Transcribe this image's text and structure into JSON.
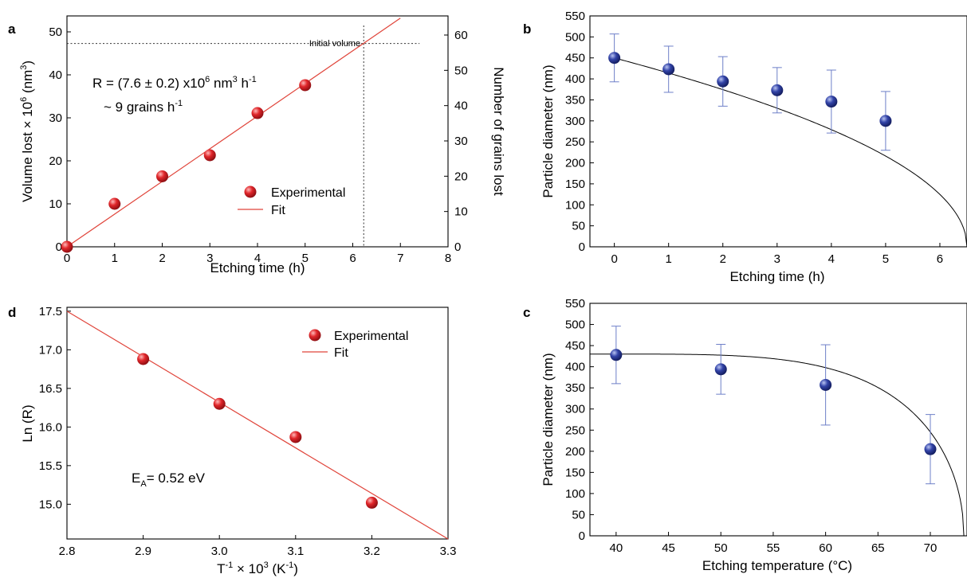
{
  "colors": {
    "red_marker": "#e0262a",
    "red_fit": "#e0443a",
    "blue_marker": "#2f3f9e",
    "blue_err": "#6d7fc8",
    "black": "#000000"
  },
  "chart_data": [
    {
      "panel": "a",
      "type": "scatter",
      "xlabel": "Etching time (h)",
      "ylabel_text": "Volume lost × 10",
      "ylabel_sup": "6",
      "ylabel_unit": " (nm",
      "ylabel_unit_sup": "3",
      "ylabel_close": ")",
      "y2label": "Number of grains lost",
      "xlim": [
        0,
        8
      ],
      "ylim": [
        0,
        50
      ],
      "y2lim": [
        0,
        60
      ],
      "xticks": [
        0,
        1,
        2,
        3,
        4,
        5,
        6,
        7,
        8
      ],
      "yticks": [
        0,
        10,
        20,
        30,
        40,
        50
      ],
      "y2ticks": [
        0,
        10,
        20,
        30,
        40,
        50,
        60
      ],
      "series": [
        {
          "name": "Experimental",
          "x": [
            0,
            1,
            2,
            3,
            4,
            5
          ],
          "y": [
            0,
            10,
            16.4,
            21.3,
            31.1,
            37.6
          ]
        },
        {
          "name": "Fit",
          "x": [
            0,
            7
          ],
          "y": [
            0,
            53.2
          ]
        }
      ],
      "reference_lines": {
        "initial_volume_y": 47.3,
        "intersect_x": 6.23,
        "label": "Initial volume"
      },
      "annotation_line1_pre": "R = (7.6 ± 0.2) x10",
      "annotation_line1_sup": "6",
      "annotation_line1_mid": " nm",
      "annotation_line1_sup2": "3",
      "annotation_line1_post": " h",
      "annotation_line1_sup3": "-1",
      "annotation_line2_pre": "~ 9 grains h",
      "annotation_line2_sup": "-1",
      "legend": [
        "Experimental",
        "Fit"
      ]
    },
    {
      "panel": "b",
      "type": "scatter",
      "xlabel": "Etching time (h)",
      "ylabel": "Particle diameter (nm)",
      "xlim": [
        -0.45,
        6.5
      ],
      "ylim": [
        0,
        550
      ],
      "xticks": [
        0,
        1,
        2,
        3,
        4,
        5,
        6
      ],
      "yticks": [
        0,
        50,
        100,
        150,
        200,
        250,
        300,
        350,
        400,
        450,
        500,
        550
      ],
      "series": [
        {
          "name": "",
          "x": [
            0,
            1,
            2,
            3,
            4,
            5
          ],
          "y": [
            450,
            423,
            394,
            373,
            346,
            300
          ],
          "err": [
            57,
            55,
            59,
            54,
            75,
            70
          ]
        }
      ],
      "fit_curve": {
        "d0": 450,
        "t_end": 6.5
      }
    },
    {
      "panel": "d",
      "type": "scatter",
      "xlabel_pre": "T",
      "xlabel_sup": "-1",
      "xlabel_mid": " × 10",
      "xlabel_sup2": "3",
      "xlabel_post": " (K",
      "xlabel_sup3": "-1",
      "xlabel_close": ")",
      "ylabel": "Ln (R)",
      "xlim": [
        2.8,
        3.3
      ],
      "ylim": [
        14.55,
        17.55
      ],
      "xticks": [
        "2.8",
        "2.9",
        "3.0",
        "3.1",
        "3.2",
        "3.3"
      ],
      "yticks": [
        "15.0",
        "15.5",
        "16.0",
        "16.5",
        "17.0",
        "17.5"
      ],
      "series": [
        {
          "name": "Experimental",
          "x": [
            2.9,
            3.0,
            3.1,
            3.2
          ],
          "y": [
            16.88,
            16.3,
            15.87,
            15.02
          ]
        },
        {
          "name": "Fit",
          "x": [
            2.8,
            3.3
          ],
          "y": [
            17.5,
            14.55
          ]
        }
      ],
      "annotation_pre": "E",
      "annotation_sub": "A",
      "annotation_post": "= 0.52 eV",
      "legend": [
        "Experimental",
        "Fit"
      ]
    },
    {
      "panel": "c",
      "type": "scatter",
      "xlabel": "Etching temperature (°C)",
      "ylabel": "Particle diameter (nm)",
      "xlim": [
        37.5,
        73.5
      ],
      "ylim": [
        0,
        550
      ],
      "xticks": [
        40,
        45,
        50,
        55,
        60,
        65,
        70
      ],
      "yticks": [
        0,
        50,
        100,
        150,
        200,
        250,
        300,
        350,
        400,
        450,
        500,
        550
      ],
      "series": [
        {
          "name": "",
          "x": [
            40,
            50,
            60,
            70
          ],
          "y": [
            428,
            394,
            357,
            205
          ],
          "err": [
            68,
            59,
            95,
            82
          ]
        }
      ],
      "fit_curve": {
        "d_start": 430,
        "t_end": 73.2
      }
    }
  ]
}
